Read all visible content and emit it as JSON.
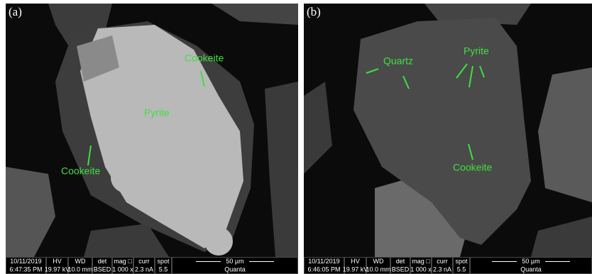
{
  "panels": [
    {
      "label": "(a)",
      "annotations": [
        "Cookeite",
        "Pyrite",
        "Cookeite"
      ],
      "info": {
        "header": [
          "10/11/2019",
          "HV",
          "WD",
          "det",
          "mag □",
          "curr",
          "spot",
          "50 µm"
        ],
        "row": [
          "6:47:35 PM",
          "19.97 kV",
          "10.0 mm",
          "BSED",
          "1 000 x",
          "2.3 nA",
          "5.5",
          "Quanta"
        ]
      }
    },
    {
      "label": "(b)",
      "annotations": [
        "Quartz",
        "Pyrite",
        "Cookeite"
      ],
      "info": {
        "header": [
          "10/11/2019",
          "HV",
          "WD",
          "det",
          "mag □",
          "curr",
          "spot",
          "50 µm"
        ],
        "row": [
          "6:46:05 PM",
          "19.97 kV",
          "10.0 mm",
          "BSED",
          "1 000 x",
          "2.3 nA",
          "5.5",
          "Quanta"
        ]
      }
    }
  ]
}
